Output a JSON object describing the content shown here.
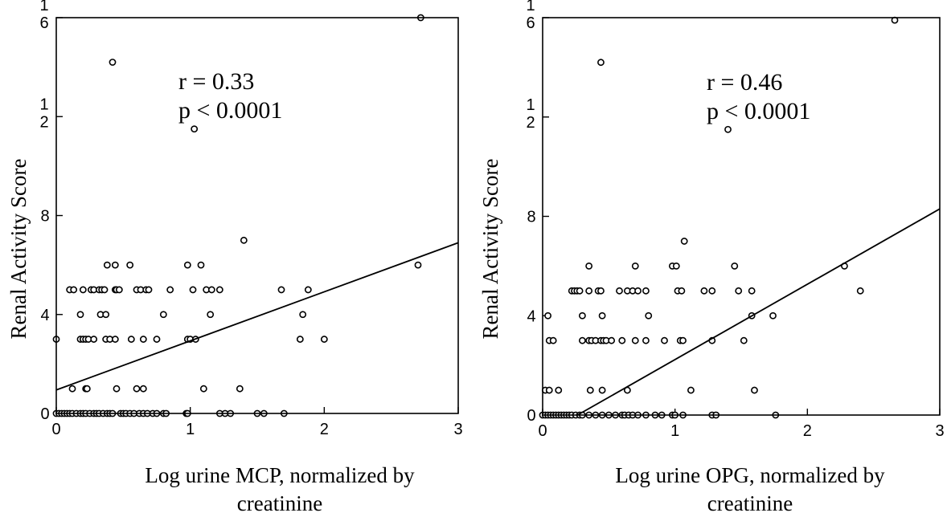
{
  "chart_data": [
    {
      "type": "scatter",
      "ylabel": "Renal Activity Score",
      "xlabel_lines": [
        "Log urine MCP, normalized by",
        "creatinine"
      ],
      "annotation_lines": [
        "r = 0.33",
        "p < 0.0001"
      ],
      "xlim": [
        0,
        3
      ],
      "ylim": [
        0,
        16
      ],
      "x_ticks": [
        {
          "value": 0,
          "label": "0"
        },
        {
          "value": 1,
          "label": "1"
        },
        {
          "value": 2,
          "label": "2"
        },
        {
          "value": 3,
          "label": "3"
        }
      ],
      "y_ticks": [
        {
          "value": 0,
          "label": "0"
        },
        {
          "value": 4,
          "label": "4"
        },
        {
          "value": 8,
          "label": "8"
        },
        {
          "value": 12,
          "label": "1 2"
        },
        {
          "value": 16,
          "label": "1 6"
        }
      ],
      "fit_line": {
        "x": [
          0,
          3
        ],
        "y": [
          0.95,
          6.9
        ]
      },
      "points": [
        [
          0.0,
          3
        ],
        [
          0.0,
          0
        ],
        [
          0.02,
          0
        ],
        [
          0.04,
          0
        ],
        [
          0.06,
          0
        ],
        [
          0.08,
          0
        ],
        [
          0.1,
          0
        ],
        [
          0.12,
          0
        ],
        [
          0.15,
          0
        ],
        [
          0.18,
          0
        ],
        [
          0.2,
          0
        ],
        [
          0.22,
          0
        ],
        [
          0.25,
          0
        ],
        [
          0.28,
          0
        ],
        [
          0.3,
          0
        ],
        [
          0.32,
          0
        ],
        [
          0.35,
          0
        ],
        [
          0.38,
          0
        ],
        [
          0.4,
          0
        ],
        [
          0.42,
          0
        ],
        [
          0.48,
          0
        ],
        [
          0.5,
          0
        ],
        [
          0.52,
          0
        ],
        [
          0.55,
          0
        ],
        [
          0.58,
          0
        ],
        [
          0.62,
          0
        ],
        [
          0.65,
          0
        ],
        [
          0.68,
          0
        ],
        [
          0.72,
          0
        ],
        [
          0.75,
          0
        ],
        [
          0.8,
          0
        ],
        [
          0.82,
          0
        ],
        [
          0.97,
          0
        ],
        [
          0.98,
          0
        ],
        [
          1.22,
          0
        ],
        [
          1.26,
          0
        ],
        [
          1.3,
          0
        ],
        [
          1.5,
          0
        ],
        [
          1.55,
          0
        ],
        [
          1.7,
          0
        ],
        [
          0.12,
          1
        ],
        [
          0.22,
          1
        ],
        [
          0.23,
          1
        ],
        [
          0.45,
          1
        ],
        [
          0.6,
          1
        ],
        [
          0.65,
          1
        ],
        [
          1.1,
          1
        ],
        [
          1.37,
          1
        ],
        [
          0.18,
          3
        ],
        [
          0.2,
          3
        ],
        [
          0.22,
          3
        ],
        [
          0.24,
          3
        ],
        [
          0.28,
          3
        ],
        [
          0.37,
          3
        ],
        [
          0.4,
          3
        ],
        [
          0.44,
          3
        ],
        [
          0.56,
          3
        ],
        [
          0.65,
          3
        ],
        [
          0.75,
          3
        ],
        [
          0.98,
          3
        ],
        [
          1.0,
          3
        ],
        [
          1.04,
          3
        ],
        [
          1.82,
          3
        ],
        [
          2.0,
          3
        ],
        [
          0.18,
          4
        ],
        [
          0.33,
          4
        ],
        [
          0.37,
          4
        ],
        [
          0.8,
          4
        ],
        [
          1.15,
          4
        ],
        [
          1.84,
          4
        ],
        [
          0.1,
          5
        ],
        [
          0.13,
          5
        ],
        [
          0.2,
          5
        ],
        [
          0.26,
          5
        ],
        [
          0.28,
          5
        ],
        [
          0.32,
          5
        ],
        [
          0.34,
          5
        ],
        [
          0.36,
          5
        ],
        [
          0.44,
          5
        ],
        [
          0.45,
          5
        ],
        [
          0.47,
          5
        ],
        [
          0.6,
          5
        ],
        [
          0.63,
          5
        ],
        [
          0.67,
          5
        ],
        [
          0.69,
          5
        ],
        [
          0.85,
          5
        ],
        [
          1.02,
          5
        ],
        [
          1.12,
          5
        ],
        [
          1.16,
          5
        ],
        [
          1.22,
          5
        ],
        [
          1.68,
          5
        ],
        [
          1.88,
          5
        ],
        [
          0.38,
          6
        ],
        [
          0.44,
          6
        ],
        [
          0.55,
          6
        ],
        [
          0.98,
          6
        ],
        [
          1.08,
          6
        ],
        [
          2.7,
          6
        ],
        [
          1.4,
          7
        ],
        [
          1.03,
          11.5
        ],
        [
          0.42,
          14.2
        ],
        [
          2.72,
          16.0
        ]
      ]
    },
    {
      "type": "scatter",
      "ylabel": "Renal Activity Score",
      "xlabel_lines": [
        "Log urine OPG, normalized by",
        "creatinine"
      ],
      "annotation_lines": [
        "r = 0.46",
        "p < 0.0001"
      ],
      "xlim": [
        0,
        3
      ],
      "ylim": [
        0,
        16
      ],
      "x_ticks": [
        {
          "value": 0,
          "label": "0"
        },
        {
          "value": 1,
          "label": "1"
        },
        {
          "value": 2,
          "label": "2"
        },
        {
          "value": 3,
          "label": "3"
        }
      ],
      "y_ticks": [
        {
          "value": 0,
          "label": "0"
        },
        {
          "value": 4,
          "label": "4"
        },
        {
          "value": 8,
          "label": "8"
        },
        {
          "value": 12,
          "label": "1 2"
        },
        {
          "value": 16,
          "label": "1 6"
        }
      ],
      "fit_line": {
        "x": [
          0,
          3
        ],
        "y": [
          -0.8,
          8.3
        ]
      },
      "points": [
        [
          0.0,
          0
        ],
        [
          0.02,
          0
        ],
        [
          0.04,
          0
        ],
        [
          0.06,
          0
        ],
        [
          0.08,
          0
        ],
        [
          0.1,
          0
        ],
        [
          0.12,
          0
        ],
        [
          0.14,
          0
        ],
        [
          0.16,
          0
        ],
        [
          0.18,
          0
        ],
        [
          0.2,
          0
        ],
        [
          0.22,
          0
        ],
        [
          0.25,
          0
        ],
        [
          0.28,
          0
        ],
        [
          0.3,
          0
        ],
        [
          0.35,
          0
        ],
        [
          0.4,
          0
        ],
        [
          0.45,
          0
        ],
        [
          0.5,
          0
        ],
        [
          0.55,
          0
        ],
        [
          0.6,
          0
        ],
        [
          0.62,
          0
        ],
        [
          0.65,
          0
        ],
        [
          0.68,
          0
        ],
        [
          0.72,
          0
        ],
        [
          0.78,
          0
        ],
        [
          0.85,
          0
        ],
        [
          0.9,
          0
        ],
        [
          0.98,
          0
        ],
        [
          1.0,
          0
        ],
        [
          1.06,
          0
        ],
        [
          1.28,
          0
        ],
        [
          1.31,
          0
        ],
        [
          1.76,
          0
        ],
        [
          0.02,
          1
        ],
        [
          0.05,
          1
        ],
        [
          0.12,
          1
        ],
        [
          0.36,
          1
        ],
        [
          0.45,
          1
        ],
        [
          0.64,
          1
        ],
        [
          1.12,
          1
        ],
        [
          1.6,
          1
        ],
        [
          0.05,
          3
        ],
        [
          0.08,
          3
        ],
        [
          0.3,
          3
        ],
        [
          0.35,
          3
        ],
        [
          0.37,
          3
        ],
        [
          0.4,
          3
        ],
        [
          0.44,
          3
        ],
        [
          0.46,
          3
        ],
        [
          0.48,
          3
        ],
        [
          0.52,
          3
        ],
        [
          0.6,
          3
        ],
        [
          0.7,
          3
        ],
        [
          0.78,
          3
        ],
        [
          0.92,
          3
        ],
        [
          1.04,
          3
        ],
        [
          1.06,
          3
        ],
        [
          1.28,
          3
        ],
        [
          1.52,
          3
        ],
        [
          0.04,
          4
        ],
        [
          0.3,
          4
        ],
        [
          0.45,
          4
        ],
        [
          0.8,
          4
        ],
        [
          1.58,
          4
        ],
        [
          1.74,
          4
        ],
        [
          0.22,
          5
        ],
        [
          0.24,
          5
        ],
        [
          0.26,
          5
        ],
        [
          0.28,
          5
        ],
        [
          0.35,
          5
        ],
        [
          0.42,
          5
        ],
        [
          0.44,
          5
        ],
        [
          0.58,
          5
        ],
        [
          0.64,
          5
        ],
        [
          0.68,
          5
        ],
        [
          0.72,
          5
        ],
        [
          0.78,
          5
        ],
        [
          1.02,
          5
        ],
        [
          1.05,
          5
        ],
        [
          1.22,
          5
        ],
        [
          1.28,
          5
        ],
        [
          1.48,
          5
        ],
        [
          1.58,
          5
        ],
        [
          2.4,
          5
        ],
        [
          0.35,
          6
        ],
        [
          0.7,
          6
        ],
        [
          0.98,
          6
        ],
        [
          1.01,
          6
        ],
        [
          1.45,
          6
        ],
        [
          2.28,
          6
        ],
        [
          1.07,
          7
        ],
        [
          1.4,
          11.5
        ],
        [
          0.44,
          14.2
        ],
        [
          2.66,
          15.9
        ]
      ]
    }
  ]
}
